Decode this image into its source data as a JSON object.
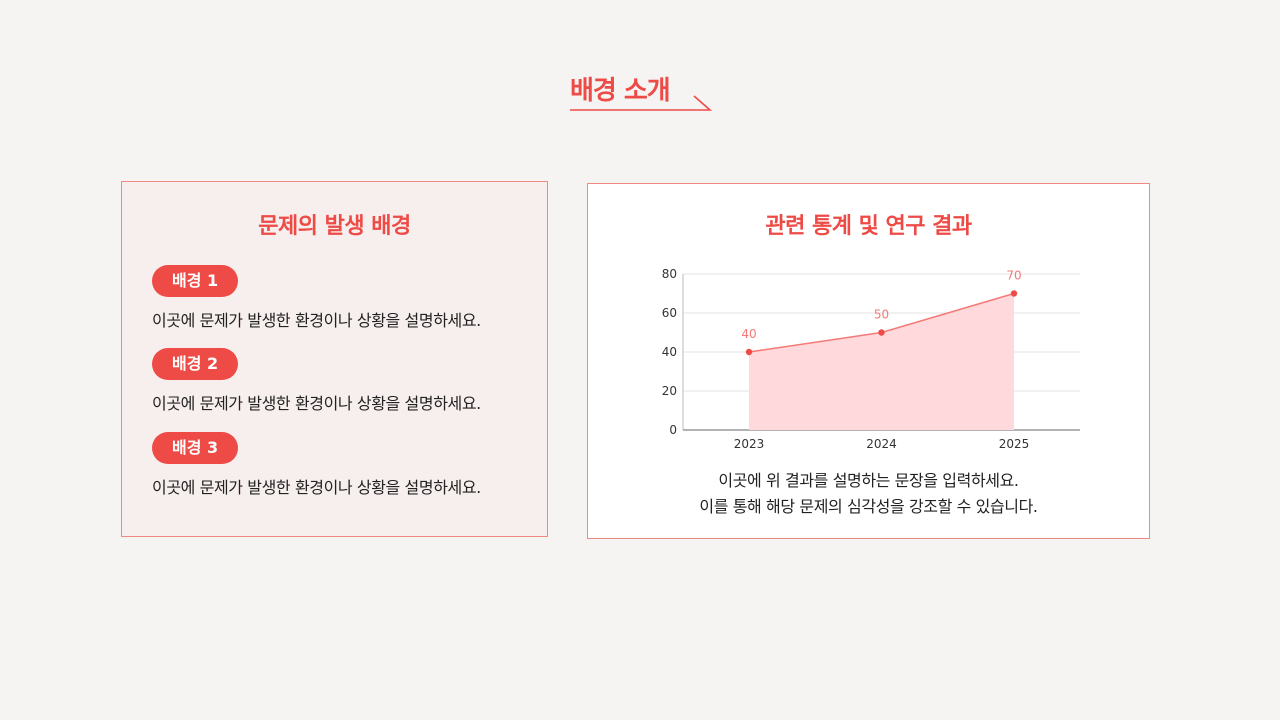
{
  "page": {
    "title": "배경 소개"
  },
  "left_card": {
    "title": "문제의 발생 배경",
    "items": [
      {
        "label": "배경 1",
        "text": "이곳에 문제가 발생한 환경이나 상황을 설명하세요."
      },
      {
        "label": "배경 2",
        "text": "이곳에 문제가 발생한 환경이나 상황을 설명하세요."
      },
      {
        "label": "배경 3",
        "text": "이곳에 문제가 발생한 환경이나 상황을 설명하세요."
      }
    ]
  },
  "right_card": {
    "title": "관련 통계 및 연구 결과",
    "caption_line1": "이곳에 위 결과를 설명하는 문장을 입력하세요.",
    "caption_line2": "이를 통해 해당 문제의 심각성을 강조할 수 있습니다."
  },
  "colors": {
    "accent": "#ee4b47",
    "area_fill": "#ffd9db",
    "border": "#f08a80"
  },
  "chart_data": {
    "type": "area",
    "categories": [
      "2023",
      "2024",
      "2025"
    ],
    "series": [
      {
        "values": [
          40,
          50,
          70
        ]
      }
    ],
    "data_labels": [
      "40",
      "50",
      "70"
    ],
    "ylim": [
      0,
      80
    ],
    "yticks": [
      "0",
      "20",
      "40",
      "60",
      "80"
    ],
    "grid": true,
    "legend": "none"
  }
}
